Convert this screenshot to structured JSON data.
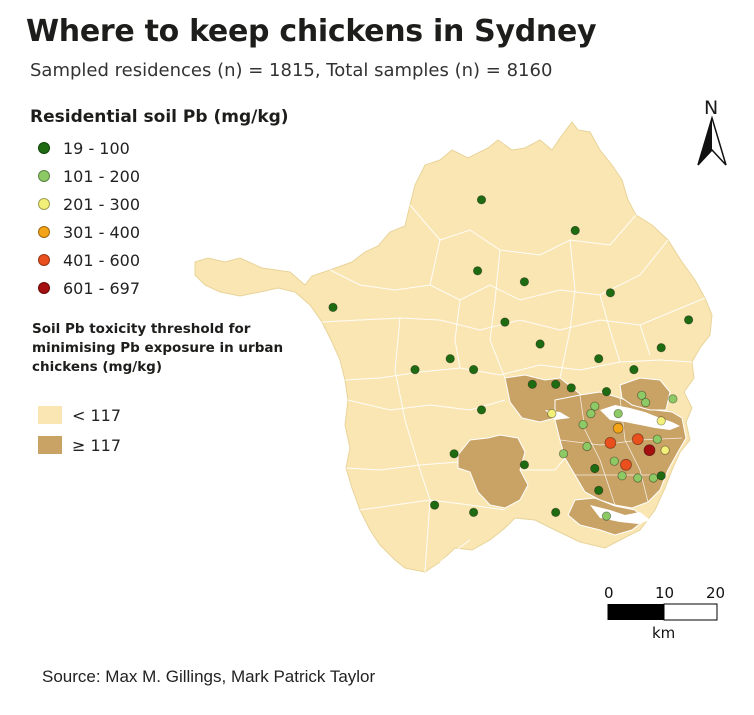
{
  "title": "Where to keep chickens in Sydney",
  "subtitle": "Sampled residences (n) = 1815, Total samples (n) = 8160",
  "legend": {
    "title": "Residential soil Pb (mg/kg)",
    "classes": [
      {
        "label": "19 - 100",
        "color": "#1e6b12"
      },
      {
        "label": "101 - 200",
        "color": "#8dc965"
      },
      {
        "label": "201 - 300",
        "color": "#f3f07a"
      },
      {
        "label": "301 - 400",
        "color": "#f2a316"
      },
      {
        "label": "401 - 600",
        "color": "#e9501d"
      },
      {
        "label": "601 - 697",
        "color": "#a50f0f"
      }
    ]
  },
  "threshold": {
    "title": "Soil Pb toxicity threshold for minimising Pb exposure in urban chickens (mg/kg)",
    "classes": [
      {
        "label": "< 117",
        "color": "#fae6b3"
      },
      {
        "label": "≥ 117",
        "color": "#c9a266"
      }
    ]
  },
  "north_label": "N",
  "scale_bar": {
    "ticks": [
      "0",
      "10",
      "20"
    ],
    "unit": "km"
  },
  "source": "Source: Max M. Gillings, Mark Patrick Taylor",
  "colors": {
    "below_threshold": "#fae6b3",
    "above_threshold": "#c9a266",
    "boundary": "#ffffff",
    "map_outline": "#e8d49a"
  },
  "map_points": [
    {
      "lon": 150.965,
      "lat": -33.588,
      "class": 0
    },
    {
      "lon": 151.085,
      "lat": -33.63,
      "class": 0
    },
    {
      "lon": 150.96,
      "lat": -33.685,
      "class": 0
    },
    {
      "lon": 151.02,
      "lat": -33.7,
      "class": 0
    },
    {
      "lon": 151.13,
      "lat": -33.715,
      "class": 0
    },
    {
      "lon": 150.775,
      "lat": -33.735,
      "class": 0
    },
    {
      "lon": 151.23,
      "lat": -33.752,
      "class": 0
    },
    {
      "lon": 150.995,
      "lat": -33.755,
      "class": 0
    },
    {
      "lon": 151.04,
      "lat": -33.785,
      "class": 0
    },
    {
      "lon": 151.195,
      "lat": -33.79,
      "class": 0
    },
    {
      "lon": 150.925,
      "lat": -33.805,
      "class": 0
    },
    {
      "lon": 150.88,
      "lat": -33.82,
      "class": 0
    },
    {
      "lon": 150.955,
      "lat": -33.82,
      "class": 0
    },
    {
      "lon": 151.115,
      "lat": -33.805,
      "class": 0
    },
    {
      "lon": 151.16,
      "lat": -33.82,
      "class": 0
    },
    {
      "lon": 151.03,
      "lat": -33.84,
      "class": 0
    },
    {
      "lon": 151.06,
      "lat": -33.84,
      "class": 0
    },
    {
      "lon": 151.08,
      "lat": -33.845,
      "class": 0
    },
    {
      "lon": 151.17,
      "lat": -33.855,
      "class": 1
    },
    {
      "lon": 151.125,
      "lat": -33.85,
      "class": 0
    },
    {
      "lon": 151.11,
      "lat": -33.87,
      "class": 1
    },
    {
      "lon": 150.965,
      "lat": -33.875,
      "class": 0
    },
    {
      "lon": 151.055,
      "lat": -33.88,
      "class": 2
    },
    {
      "lon": 151.105,
      "lat": -33.88,
      "class": 1
    },
    {
      "lon": 151.14,
      "lat": -33.88,
      "class": 1
    },
    {
      "lon": 151.175,
      "lat": -33.865,
      "class": 1
    },
    {
      "lon": 151.21,
      "lat": -33.86,
      "class": 1
    },
    {
      "lon": 151.195,
      "lat": -33.89,
      "class": 2
    },
    {
      "lon": 151.095,
      "lat": -33.895,
      "class": 1
    },
    {
      "lon": 151.14,
      "lat": -33.9,
      "class": 3
    },
    {
      "lon": 151.165,
      "lat": -33.915,
      "class": 4
    },
    {
      "lon": 151.13,
      "lat": -33.92,
      "class": 4
    },
    {
      "lon": 151.19,
      "lat": -33.915,
      "class": 1
    },
    {
      "lon": 151.1,
      "lat": -33.925,
      "class": 1
    },
    {
      "lon": 151.2,
      "lat": -33.93,
      "class": 2
    },
    {
      "lon": 151.18,
      "lat": -33.93,
      "class": 5
    },
    {
      "lon": 151.07,
      "lat": -33.935,
      "class": 1
    },
    {
      "lon": 151.135,
      "lat": -33.945,
      "class": 1
    },
    {
      "lon": 151.15,
      "lat": -33.95,
      "class": 4
    },
    {
      "lon": 150.93,
      "lat": -33.935,
      "class": 0
    },
    {
      "lon": 151.02,
      "lat": -33.95,
      "class": 0
    },
    {
      "lon": 151.11,
      "lat": -33.955,
      "class": 0
    },
    {
      "lon": 151.145,
      "lat": -33.965,
      "class": 1
    },
    {
      "lon": 151.165,
      "lat": -33.968,
      "class": 1
    },
    {
      "lon": 151.185,
      "lat": -33.968,
      "class": 1
    },
    {
      "lon": 151.195,
      "lat": -33.965,
      "class": 0
    },
    {
      "lon": 151.115,
      "lat": -33.985,
      "class": 0
    },
    {
      "lon": 150.905,
      "lat": -34.005,
      "class": 0
    },
    {
      "lon": 150.955,
      "lat": -34.015,
      "class": 0
    },
    {
      "lon": 151.06,
      "lat": -34.015,
      "class": 0
    },
    {
      "lon": 151.125,
      "lat": -34.02,
      "class": 1
    }
  ]
}
